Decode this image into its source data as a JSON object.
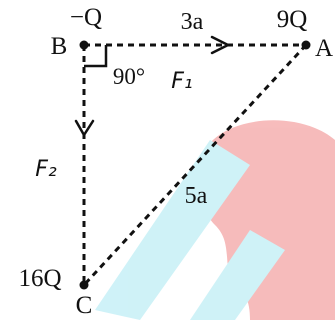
{
  "points": {
    "B": {
      "label": "B",
      "charge": "−Q"
    },
    "A": {
      "label": "A",
      "charge": "9Q"
    },
    "C": {
      "label": "C",
      "charge": "16Q"
    }
  },
  "edges": {
    "ba": {
      "label": "3a"
    },
    "ac": {
      "label": "5a"
    }
  },
  "angle": {
    "label": "90°"
  },
  "forces": {
    "f1": {
      "label": "F₁"
    },
    "f2": {
      "label": "F₂"
    }
  },
  "colors": {
    "ink": "#111111",
    "watermark_red": "#f4a5a5",
    "watermark_cyan": "#bfeef5"
  }
}
